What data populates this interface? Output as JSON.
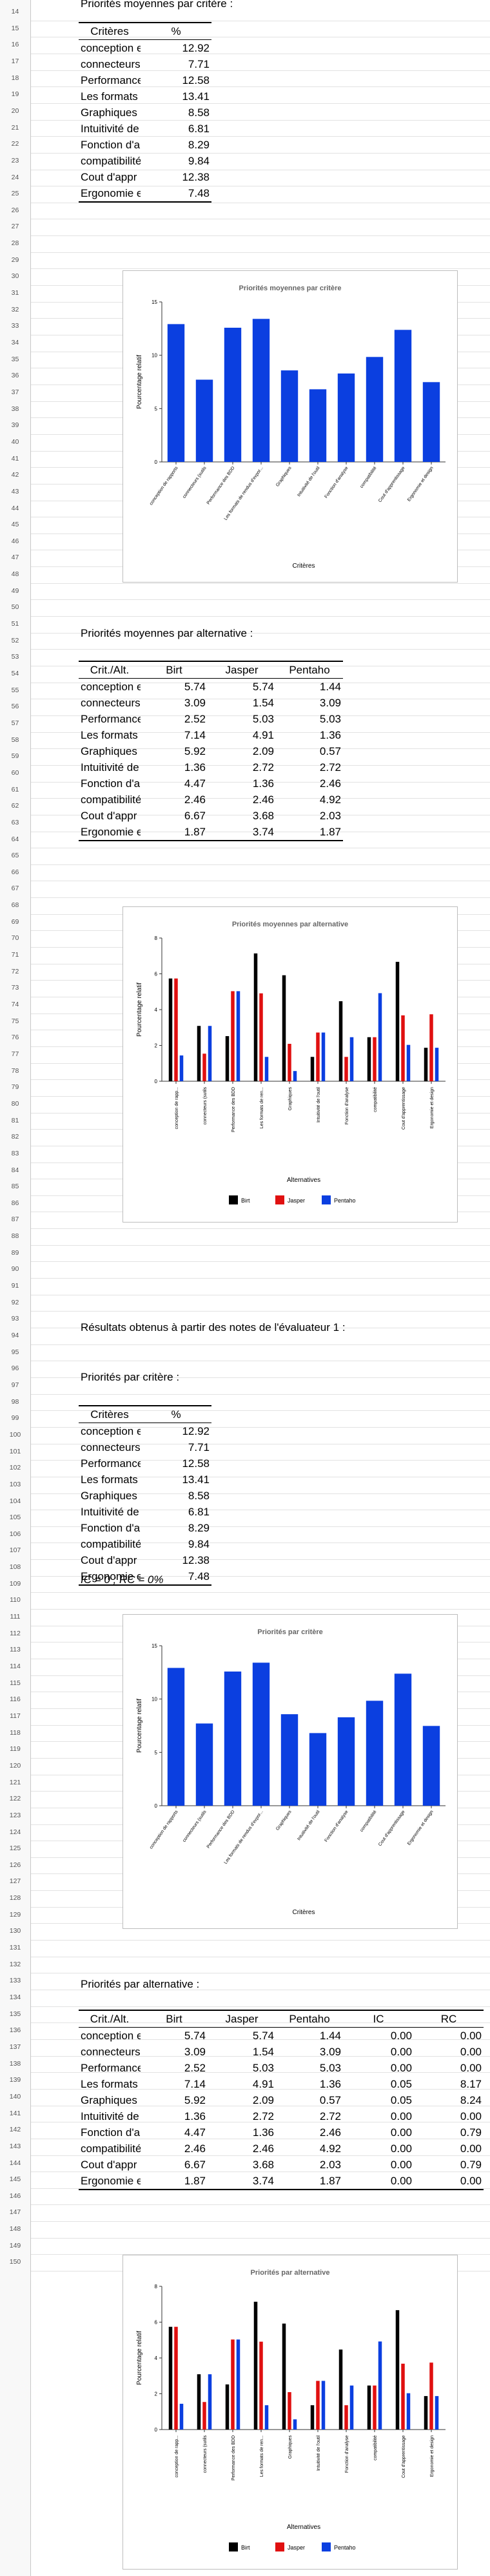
{
  "section1": {
    "title": "Priorités moyennes par critère :",
    "table": {
      "headers": [
        "Critères",
        "%"
      ],
      "rows": [
        [
          "conception et gestion",
          "12.92"
        ],
        [
          "connecteurs",
          "7.71"
        ],
        [
          "Performance",
          "12.58"
        ],
        [
          "Les formats",
          "13.41"
        ],
        [
          "Graphiques",
          "8.58"
        ],
        [
          "Intuitivité de",
          "6.81"
        ],
        [
          "Fonction d'a",
          "8.29"
        ],
        [
          "compatibilité",
          "9.84"
        ],
        [
          "Cout d'appr",
          "12.38"
        ],
        [
          "Ergonomie et",
          "7.48"
        ]
      ]
    }
  },
  "chart1": {
    "chart_data": {
      "type": "bar",
      "title": "Priorités moyennes par critère",
      "xlabel": "Critères",
      "ylabel": "Pourcentage relatif",
      "ylim": [
        0,
        15
      ],
      "yticks": [
        "0",
        "5",
        "10",
        "15"
      ],
      "categories": [
        "conception de rapports",
        "connecteurs (sutils",
        "Performance des BDD",
        "Les formats de rendus d'expor...",
        "Graphiques",
        "Intuitivité de l'outil",
        "Fonction d'analyse",
        "compatibilité",
        "Cout d'apprentissage",
        "Ergonomie et design"
      ],
      "values": [
        12.92,
        7.71,
        12.58,
        13.41,
        8.58,
        6.81,
        8.29,
        9.84,
        12.38,
        7.48
      ],
      "color": "#0b3fe0",
      "grid": false,
      "legend": "none"
    }
  },
  "section2": {
    "title": "Priorités moyennes par alternative :",
    "table": {
      "headers": [
        "Crit./Alt.",
        "Birt",
        "Jasper",
        "Pentaho"
      ],
      "rows": [
        [
          "conception et gestion",
          "5.74",
          "5.74",
          "1.44"
        ],
        [
          "connecteurs",
          "3.09",
          "1.54",
          "3.09"
        ],
        [
          "Performance",
          "2.52",
          "5.03",
          "5.03"
        ],
        [
          "Les formats",
          "7.14",
          "4.91",
          "1.36"
        ],
        [
          "Graphiques",
          "5.92",
          "2.09",
          "0.57"
        ],
        [
          "Intuitivité de",
          "1.36",
          "2.72",
          "2.72"
        ],
        [
          "Fonction d'a",
          "4.47",
          "1.36",
          "2.46"
        ],
        [
          "compatibilité",
          "2.46",
          "2.46",
          "4.92"
        ],
        [
          "Cout d'appr",
          "6.67",
          "3.68",
          "2.03"
        ],
        [
          "Ergonomie et",
          "1.87",
          "3.74",
          "1.87"
        ]
      ]
    }
  },
  "chart2": {
    "chart_data": {
      "type": "bar",
      "title": "Priorités moyennes par alternative",
      "xlabel": "Alternatives",
      "ylabel": "Pourcentage relatif",
      "ylim": [
        0,
        8
      ],
      "yticks": [
        "0",
        "2",
        "4",
        "6",
        "8"
      ],
      "categories": [
        "conception de rapp...",
        "connecteurs (sutils",
        "Performance des BDD",
        "Les formats de ren...",
        "Graphiques",
        "Intuitivité de l'outil",
        "Fonction d'analyse",
        "compatibilité",
        "Cout d'apprentissage",
        "Ergonomie et design"
      ],
      "series": [
        {
          "name": "Birt",
          "color": "#000000",
          "values": [
            5.74,
            3.09,
            2.52,
            7.14,
            5.92,
            1.36,
            4.47,
            2.46,
            6.67,
            1.87
          ]
        },
        {
          "name": "Jasper",
          "color": "#e01010",
          "values": [
            5.74,
            1.54,
            5.03,
            4.91,
            2.09,
            2.72,
            1.36,
            2.46,
            3.68,
            3.74
          ]
        },
        {
          "name": "Pentaho",
          "color": "#0b3fe0",
          "values": [
            1.44,
            3.09,
            5.03,
            1.36,
            0.57,
            2.72,
            2.46,
            4.92,
            2.03,
            1.87
          ]
        }
      ],
      "legend": "bottom",
      "grid": false
    }
  },
  "section3": {
    "intro": "Résultats obtenus à partir des notes de l'évaluateur 1 :",
    "title": "Priorités par critère :",
    "table": {
      "headers": [
        "Critères",
        "%"
      ],
      "rows": [
        [
          "conception et gestion",
          "12.92"
        ],
        [
          "connecteurs",
          "7.71"
        ],
        [
          "Performance",
          "12.58"
        ],
        [
          "Les formats",
          "13.41"
        ],
        [
          "Graphiques",
          "8.58"
        ],
        [
          "Intuitivité de",
          "6.81"
        ],
        [
          "Fonction d'a",
          "8.29"
        ],
        [
          "compatibilité",
          "9.84"
        ],
        [
          "Cout d'appr",
          "12.38"
        ],
        [
          "Ergonomie et",
          "7.48"
        ]
      ]
    },
    "note": "IC = 0 ; RC = 0%"
  },
  "chart3": {
    "chart_data": {
      "type": "bar",
      "title": "Priorités par critère",
      "xlabel": "Critères",
      "ylabel": "Pourcentage relatif",
      "ylim": [
        0,
        15
      ],
      "yticks": [
        "0",
        "5",
        "10",
        "15"
      ],
      "categories": [
        "conception de rapports",
        "connecteurs (sutils",
        "Performance des BDD",
        "Les formats de rendus d'expor...",
        "Graphiques",
        "Intuitivité de l'outil",
        "Fonction d'analyse",
        "compatibilité",
        "Cout d'apprentissage",
        "Ergonomie et design"
      ],
      "values": [
        12.92,
        7.71,
        12.58,
        13.41,
        8.58,
        6.81,
        8.29,
        9.84,
        12.38,
        7.48
      ],
      "color": "#0b3fe0",
      "grid": false,
      "legend": "none"
    }
  },
  "section4": {
    "title": "Priorités par alternative :",
    "table": {
      "headers": [
        "Crit./Alt.",
        "Birt",
        "Jasper",
        "Pentaho",
        "IC",
        "RC"
      ],
      "rows": [
        [
          "conception et gestion",
          "5.74",
          "5.74",
          "1.44",
          "0.00",
          "0.00"
        ],
        [
          "connecteurs",
          "3.09",
          "1.54",
          "3.09",
          "0.00",
          "0.00"
        ],
        [
          "Performance",
          "2.52",
          "5.03",
          "5.03",
          "0.00",
          "0.00"
        ],
        [
          "Les formats",
          "7.14",
          "4.91",
          "1.36",
          "0.05",
          "8.17"
        ],
        [
          "Graphiques",
          "5.92",
          "2.09",
          "0.57",
          "0.05",
          "8.24"
        ],
        [
          "Intuitivité de",
          "1.36",
          "2.72",
          "2.72",
          "0.00",
          "0.00"
        ],
        [
          "Fonction d'a",
          "4.47",
          "1.36",
          "2.46",
          "0.00",
          "0.79"
        ],
        [
          "compatibilité",
          "2.46",
          "2.46",
          "4.92",
          "0.00",
          "0.00"
        ],
        [
          "Cout d'appr",
          "6.67",
          "3.68",
          "2.03",
          "0.00",
          "0.79"
        ],
        [
          "Ergonomie et",
          "1.87",
          "3.74",
          "1.87",
          "0.00",
          "0.00"
        ]
      ]
    }
  },
  "chart4": {
    "chart_data": {
      "type": "bar",
      "title": "Priorités par alternative",
      "xlabel": "Alternatives",
      "ylabel": "Pourcentage relatif",
      "ylim": [
        0,
        8
      ],
      "yticks": [
        "0",
        "2",
        "4",
        "6",
        "8"
      ],
      "categories": [
        "conception de rapp...",
        "connecteurs (sutils",
        "Performance des BDD",
        "Les formats de ren...",
        "Graphiques",
        "Intuitivité de l'outil",
        "Fonction d'analyse",
        "compatibilité",
        "Cout d'apprentissage",
        "Ergonomie et design"
      ],
      "series": [
        {
          "name": "Birt",
          "color": "#000000",
          "values": [
            5.74,
            3.09,
            2.52,
            7.14,
            5.92,
            1.36,
            4.47,
            2.46,
            6.67,
            1.87
          ]
        },
        {
          "name": "Jasper",
          "color": "#e01010",
          "values": [
            5.74,
            1.54,
            5.03,
            4.91,
            2.09,
            2.72,
            1.36,
            2.46,
            3.68,
            3.74
          ]
        },
        {
          "name": "Pentaho",
          "color": "#0b3fe0",
          "values": [
            1.44,
            3.09,
            5.03,
            1.36,
            0.57,
            2.72,
            2.46,
            4.92,
            2.03,
            1.87
          ]
        }
      ],
      "legend": "bottom",
      "grid": false
    }
  }
}
